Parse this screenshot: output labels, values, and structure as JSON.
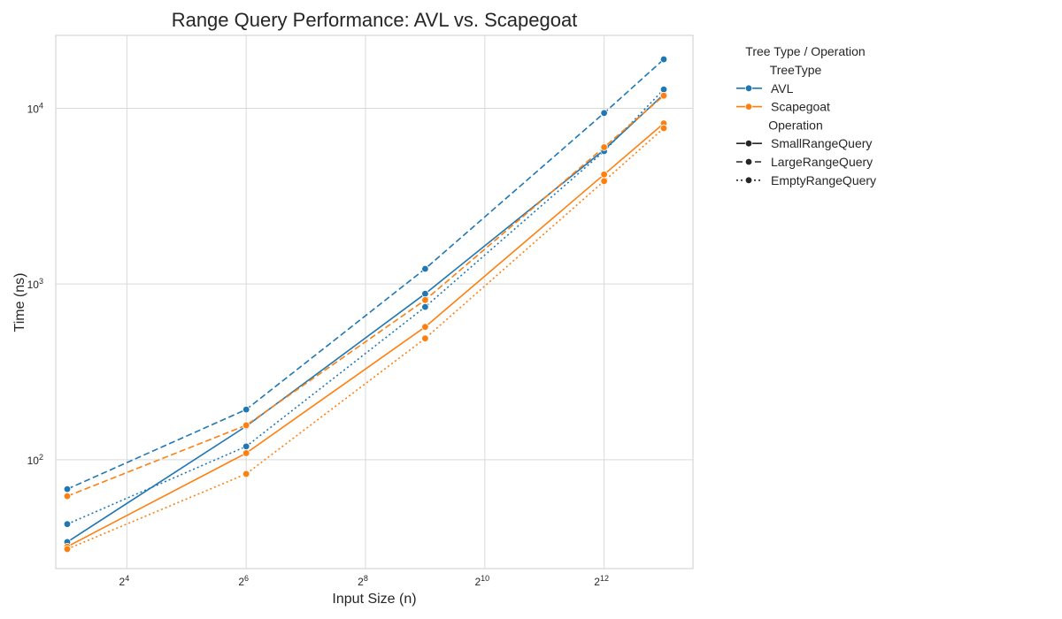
{
  "chart_data": {
    "type": "line",
    "title": "Range Query Performance: AVL vs. Scapegoat",
    "xlabel": "Input Size (n)",
    "ylabel": "Time (ns)",
    "x_scale": "log2",
    "y_scale": "log10",
    "xlim": [
      7,
      11500
    ],
    "ylim": [
      24,
      26000
    ],
    "x_ticks": [
      {
        "value": 16,
        "base": "2",
        "exp": "4"
      },
      {
        "value": 64,
        "base": "2",
        "exp": "6"
      },
      {
        "value": 256,
        "base": "2",
        "exp": "8"
      },
      {
        "value": 1024,
        "base": "2",
        "exp": "10"
      },
      {
        "value": 4096,
        "base": "2",
        "exp": "12"
      }
    ],
    "y_ticks": [
      {
        "value": 100,
        "base": "10",
        "exp": "2"
      },
      {
        "value": 1000,
        "base": "10",
        "exp": "3"
      },
      {
        "value": 10000,
        "base": "10",
        "exp": "4"
      }
    ],
    "x": [
      8,
      64,
      512,
      4096,
      8192
    ],
    "grid": true,
    "series": [
      {
        "name": "AVL",
        "operation": "SmallRangeQuery",
        "color": "#1f77b4",
        "dash": "solid",
        "values": [
          34,
          155,
          880,
          5800,
          12000
        ]
      },
      {
        "name": "AVL",
        "operation": "LargeRangeQuery",
        "color": "#1f77b4",
        "dash": "dashed",
        "values": [
          68,
          193,
          1220,
          9400,
          19000
        ]
      },
      {
        "name": "AVL",
        "operation": "EmptyRangeQuery",
        "color": "#1f77b4",
        "dash": "dotted",
        "values": [
          43,
          119,
          740,
          5700,
          12800
        ]
      },
      {
        "name": "Scapegoat",
        "operation": "SmallRangeQuery",
        "color": "#ff7f0e",
        "dash": "solid",
        "values": [
          32,
          109,
          570,
          4200,
          8200
        ]
      },
      {
        "name": "Scapegoat",
        "operation": "LargeRangeQuery",
        "color": "#ff7f0e",
        "dash": "dashed",
        "values": [
          62,
          157,
          810,
          6000,
          11800
        ]
      },
      {
        "name": "Scapegoat",
        "operation": "EmptyRangeQuery",
        "color": "#ff7f0e",
        "dash": "dotted",
        "values": [
          31,
          83,
          490,
          3850,
          7700
        ]
      }
    ],
    "legend": {
      "title": "Tree Type / Operation",
      "placement": "outside-right",
      "entries": [
        {
          "kind": "header",
          "label": "TreeType"
        },
        {
          "kind": "color",
          "label": "AVL",
          "color": "#1f77b4"
        },
        {
          "kind": "color",
          "label": "Scapegoat",
          "color": "#ff7f0e"
        },
        {
          "kind": "header",
          "label": "Operation"
        },
        {
          "kind": "dash",
          "label": "SmallRangeQuery",
          "dash": "solid"
        },
        {
          "kind": "dash",
          "label": "LargeRangeQuery",
          "dash": "dashed"
        },
        {
          "kind": "dash",
          "label": "EmptyRangeQuery",
          "dash": "dotted"
        }
      ]
    }
  }
}
